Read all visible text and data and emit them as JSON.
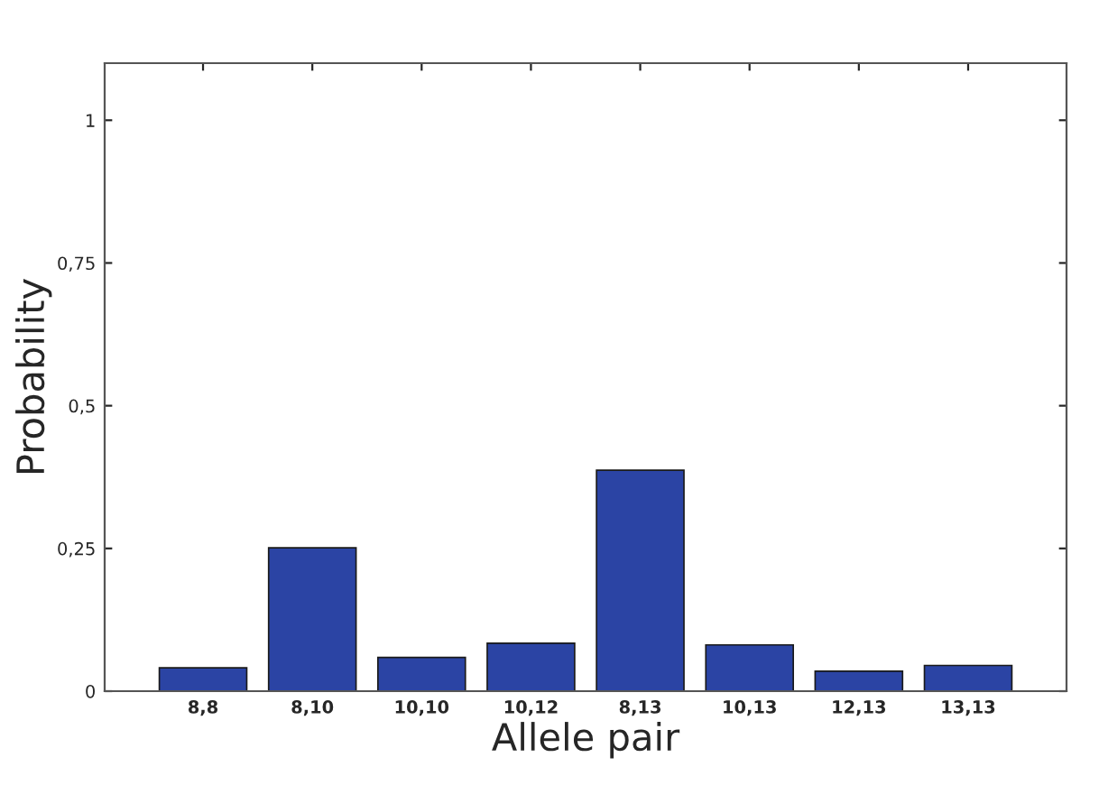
{
  "chart_data": {
    "type": "bar",
    "xlabel": "Allele pair",
    "ylabel": "Probability",
    "categories": [
      "8,8",
      "8,10",
      "10,10",
      "10,12",
      "8,13",
      "10,13",
      "12,13",
      "13,13"
    ],
    "values": [
      0.041,
      0.251,
      0.059,
      0.084,
      0.387,
      0.081,
      0.035,
      0.045
    ],
    "color": "#2b44a4",
    "ylim": [
      0,
      1.1
    ],
    "yticks": [
      0,
      {
        "value": 0.25,
        "label": "0,25"
      },
      {
        "value": 0.5,
        "label": "0,5"
      },
      {
        "value": 0.75,
        "label": "0,75"
      },
      1
    ],
    "grid": false
  }
}
